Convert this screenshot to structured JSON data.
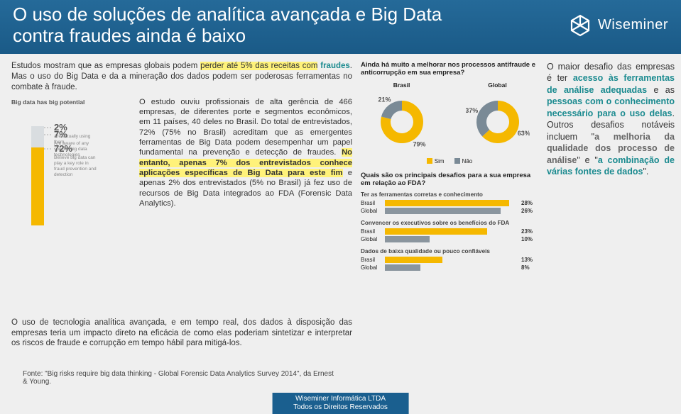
{
  "header": {
    "title_l1": "O uso de soluções de analítica avançada e Big Data",
    "title_l2": "contra fraudes ainda é baixo",
    "logo_text": "Wiseminer"
  },
  "intro": {
    "p1a": "Estudos mostram que as empresas globais podem ",
    "p1_hl1": "perder até 5% das receitas com",
    "p1_hl2_teal": "fraudes",
    "p1b": ". Mas o uso do Big Data e da a mineração dos dados podem ser poderosas ferramentas no combate à fraude."
  },
  "bars": {
    "title": "Big data has big potential",
    "items": [
      {
        "pct": 72,
        "label_pct": "72%",
        "caption": "Believe big data can play a key role in fraud prevention and detection",
        "color": "#f5b800",
        "h": 110
      },
      {
        "pct": 7,
        "label_pct": "7%",
        "caption": "Are aware of any specific big data technologies",
        "color": "#d9dde0",
        "h": 20
      },
      {
        "pct": 2,
        "label_pct": "2%",
        "caption": "Are actually using them",
        "color": "#d9dde0",
        "h": 10
      }
    ]
  },
  "study": {
    "t1": "O estudo ouviu profissionais de alta gerência de 466 empresas, de diferentes porte e segmentos econômicos, em 11 países, 40 deles no Brasil. Do total de entrevistados, 72% (75% no Brasil) acreditam que as emergentes ferramentas de Big Data podem desempenhar um papel fundamental na prevenção e detecção de fraudes. ",
    "t2_hl": "No entanto, apenas 7% dos entrevistados conhece aplicações específicas de Big Data para este fim",
    "t3": " e apenas 2% dos entrevistados (5% no Brasil) já fez uso de recursos de Big Data integrados ao FDA (Forensic Data Analytics)."
  },
  "col2": {
    "q1": "Ainda há muito a melhorar nos processos antifraude e anticorrupção em sua empresa?",
    "donuts": [
      {
        "label": "Brasil",
        "sim": 79,
        "nao": 21,
        "sim_txt": "79%",
        "nao_txt": "21%"
      },
      {
        "label": "Global",
        "sim": 63,
        "nao": 37,
        "sim_txt": "63%",
        "nao_txt": "37%"
      }
    ],
    "legend_sim": "Sim",
    "legend_nao": "Não",
    "q2": "Quais são os principais desafios para a sua empresa em relação ao FDA?",
    "groups": [
      {
        "subtitle": "Ter as ferramentas corretas e conhecimento",
        "rows": [
          {
            "label": "Brasil",
            "val": 28,
            "txt": "28%",
            "color": "#f5b800"
          },
          {
            "label": "Global",
            "val": 26,
            "txt": "26%",
            "color": "#8a959e"
          }
        ]
      },
      {
        "subtitle": "Convencer os executivos sobre os benefícios do FDA",
        "rows": [
          {
            "label": "Brasil",
            "val": 23,
            "txt": "23%",
            "color": "#f5b800"
          },
          {
            "label": "Global",
            "val": 10,
            "txt": "10%",
            "color": "#8a959e"
          }
        ]
      },
      {
        "subtitle": "Dados de baixa qualidade ou pouco confiáveis",
        "rows": [
          {
            "label": "Brasil",
            "val": 13,
            "txt": "13%",
            "color": "#f5b800"
          },
          {
            "label": "Global",
            "val": 8,
            "txt": "8%",
            "color": "#8a959e"
          }
        ]
      }
    ]
  },
  "col3": {
    "a": "O maior desafio das empresas é ter ",
    "b": "acesso às ferramentas de análise adequadas",
    "c": " e as ",
    "d": "pessoas com o conhecimento necessário para o uso delas",
    "e": ". Outros desafios notáveis incluem \"",
    "f": "a melhoria da qualidade dos processo de análise",
    "g": "\" e \"",
    "h": "a combinação de várias fontes de dados",
    "i": "\"."
  },
  "bottom": "O uso de tecnologia analítica avançada, e em tempo real, dos dados à disposição das empresas teria um impacto direto na eficácia de como elas poderiam sintetizar e interpretar os riscos de fraude e corrupção em tempo hábil para mitigá-los.",
  "source": "Fonte: \"Big risks require big data thinking - Global Forensic Data Analytics Survey 2014\", da Ernest & Young.",
  "footer": {
    "l1": "Wiseminer Informática LTDA",
    "l2": "Todos os Direitos Reservados"
  },
  "style": {
    "hbar_max": 30,
    "hbar_track_w": 150,
    "donut_colors": {
      "sim": "#f5b800",
      "nao": "#7a8a96"
    }
  }
}
